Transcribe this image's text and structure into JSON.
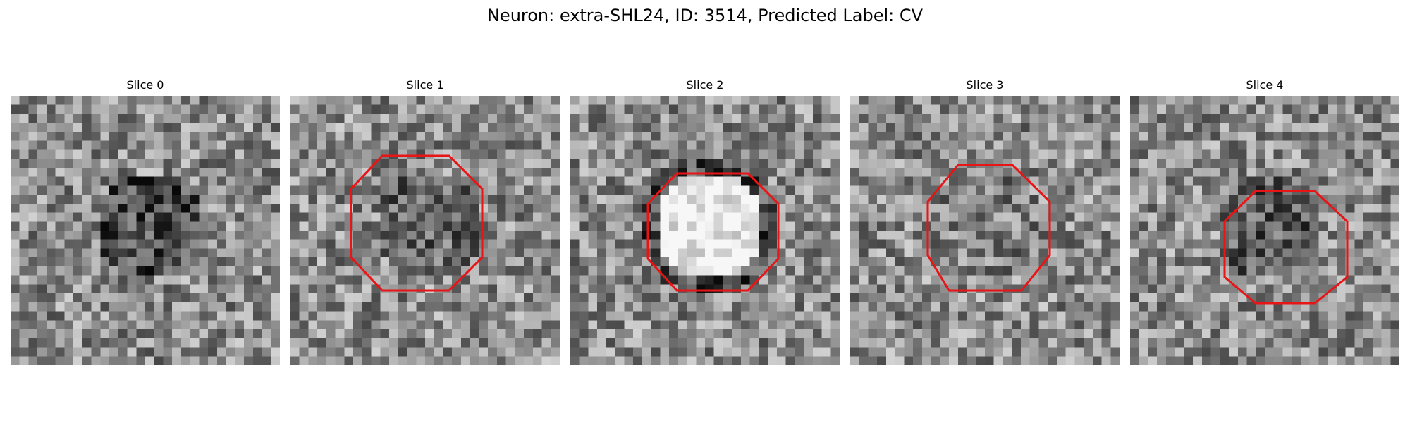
{
  "title": "Neuron: extra-SHL24, ID: 3514, Predicted Label: CV",
  "overlay_color": "#e81416",
  "slices": [
    {
      "label": "Slice 0",
      "seed": 11,
      "has_octagon": false,
      "center_brightness": -0.25
    },
    {
      "label": "Slice 1",
      "seed": 23,
      "has_octagon": true,
      "center_brightness": -0.15
    },
    {
      "label": "Slice 2",
      "seed": 37,
      "has_octagon": true,
      "center_brightness": 0.45
    },
    {
      "label": "Slice 3",
      "seed": 41,
      "has_octagon": true,
      "center_brightness": -0.05
    },
    {
      "label": "Slice 4",
      "seed": 59,
      "has_octagon": true,
      "center_brightness": -0.2
    }
  ]
}
